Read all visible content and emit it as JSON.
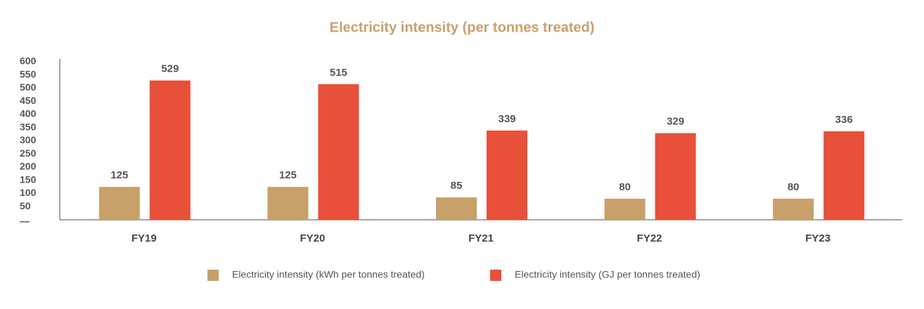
{
  "chart_data": {
    "type": "bar",
    "title": "Electricity intensity (per tonnes treated)",
    "categories": [
      "FY19",
      "FY20",
      "FY21",
      "FY22",
      "FY23"
    ],
    "series": [
      {
        "name": "Electricity intensity (kWh per tonnes treated)",
        "color": "#c8a06a",
        "values": [
          125,
          125,
          85,
          80,
          80
        ]
      },
      {
        "name": "Electricity intensity (GJ per tonnes treated)",
        "color": "#e8503a",
        "values": [
          529,
          515,
          339,
          329,
          336
        ]
      }
    ],
    "ylim": [
      0,
      600
    ],
    "yticks": [
      {
        "value": 0,
        "label": "—"
      },
      50,
      100,
      150,
      200,
      250,
      300,
      350,
      400,
      450,
      500,
      550,
      600
    ],
    "grid": false,
    "legend": "bottom"
  }
}
